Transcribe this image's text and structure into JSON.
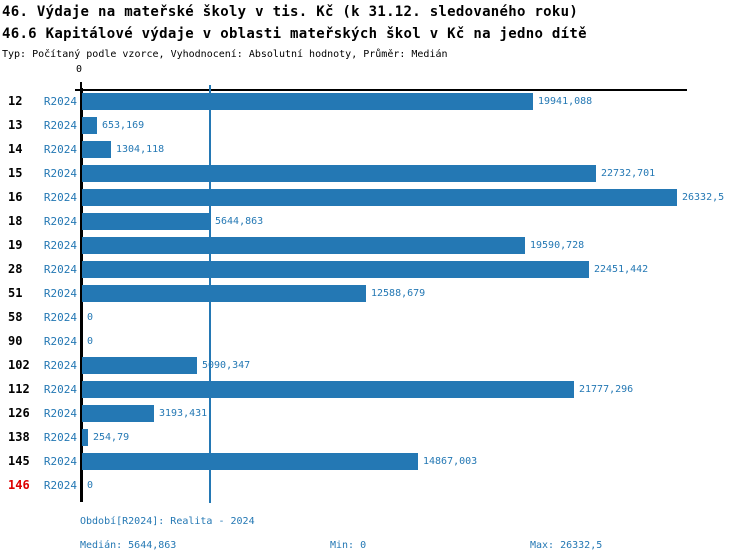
{
  "header": {
    "title_line1": "46. Výdaje na mateřské školy v tis. Kč (k 31.12. sledovaného roku)",
    "title_line2": "46.6 Kapitálové výdaje v oblasti mateřských škol v Kč na jedno dítě",
    "subtitle": "Typ: Počítaný podle vzorce, Vyhodnocení: Absolutní hodnoty, Průměr: Medián"
  },
  "axis": {
    "zero_label": "0",
    "max": 26332.5,
    "median": 5644.863
  },
  "colors": {
    "bar_blue": "#2478b4",
    "text_blue": "#2478b4",
    "highlight_red": "#dd0000",
    "axis_black": "#000000"
  },
  "rows": [
    {
      "id": "12",
      "period": "R2024",
      "value": 19941.088,
      "value_label": "19941,088",
      "highlight": false
    },
    {
      "id": "13",
      "period": "R2024",
      "value": 653.169,
      "value_label": "653,169",
      "highlight": false
    },
    {
      "id": "14",
      "period": "R2024",
      "value": 1304.118,
      "value_label": "1304,118",
      "highlight": false
    },
    {
      "id": "15",
      "period": "R2024",
      "value": 22732.701,
      "value_label": "22732,701",
      "highlight": false
    },
    {
      "id": "16",
      "period": "R2024",
      "value": 26332.5,
      "value_label": "26332,5",
      "highlight": false
    },
    {
      "id": "18",
      "period": "R2024",
      "value": 5644.863,
      "value_label": "5644,863",
      "highlight": false
    },
    {
      "id": "19",
      "period": "R2024",
      "value": 19590.728,
      "value_label": "19590,728",
      "highlight": false
    },
    {
      "id": "28",
      "period": "R2024",
      "value": 22451.442,
      "value_label": "22451,442",
      "highlight": false
    },
    {
      "id": "51",
      "period": "R2024",
      "value": 12588.679,
      "value_label": "12588,679",
      "highlight": false
    },
    {
      "id": "58",
      "period": "R2024",
      "value": 0,
      "value_label": "0",
      "highlight": false
    },
    {
      "id": "90",
      "period": "R2024",
      "value": 0,
      "value_label": "0",
      "highlight": false
    },
    {
      "id": "102",
      "period": "R2024",
      "value": 5090.347,
      "value_label": "5090,347",
      "highlight": false
    },
    {
      "id": "112",
      "period": "R2024",
      "value": 21777.296,
      "value_label": "21777,296",
      "highlight": false
    },
    {
      "id": "126",
      "period": "R2024",
      "value": 3193.431,
      "value_label": "3193,431",
      "highlight": false
    },
    {
      "id": "138",
      "period": "R2024",
      "value": 254.79,
      "value_label": "254,79",
      "highlight": false
    },
    {
      "id": "145",
      "period": "R2024",
      "value": 14867.003,
      "value_label": "14867,003",
      "highlight": false
    },
    {
      "id": "146",
      "period": "R2024",
      "value": 0,
      "value_label": "0",
      "highlight": true
    }
  ],
  "footer": {
    "period": "Období[R2024]: Realita - 2024",
    "median": "Medián: 5644,863",
    "min": "Min: 0",
    "max": "Max: 26332,5"
  },
  "chart_data": {
    "type": "bar",
    "orientation": "horizontal",
    "title": "46. Výdaje na mateřské školy v tis. Kč (k 31.12. sledovaného roku)",
    "subtitle": "46.6 Kapitálové výdaje v oblasti mateřských škol v Kč na jedno dítě",
    "evaluation_note": "Typ: Počítaný podle vzorce, Vyhodnocení: Absolutní hodnoty, Průměr: Medián",
    "categories": [
      "12",
      "13",
      "14",
      "15",
      "16",
      "18",
      "19",
      "28",
      "51",
      "58",
      "90",
      "102",
      "112",
      "126",
      "138",
      "145",
      "146"
    ],
    "series": [
      {
        "name": "R2024",
        "values": [
          19941.088,
          653.169,
          1304.118,
          22732.701,
          26332.5,
          5644.863,
          19590.728,
          22451.442,
          12588.679,
          0,
          0,
          5090.347,
          21777.296,
          3193.431,
          254.79,
          14867.003,
          0
        ]
      }
    ],
    "xlim": [
      0,
      26332.5
    ],
    "xlabel": "",
    "ylabel": "",
    "grid": false,
    "legend_position": "none",
    "median_reference_line": 5644.863,
    "stats": {
      "median": 5644.863,
      "min": 0,
      "max": 26332.5
    },
    "highlighted_category": "146"
  }
}
